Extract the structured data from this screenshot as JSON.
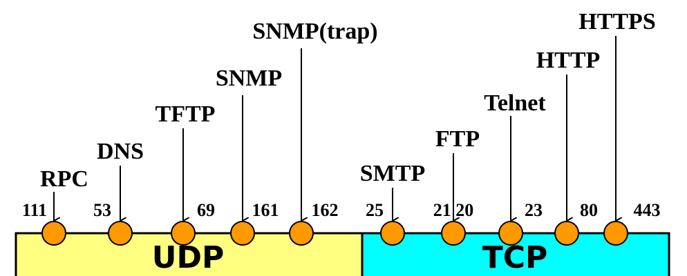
{
  "segments": {
    "udp_label": "UDP",
    "tcp_label": "TCP",
    "udp_color": "#ffff80",
    "tcp_color": "#00ffff"
  },
  "node_color": "#ff9900",
  "services": [
    {
      "id": "rpc",
      "name": "RPC",
      "port": "111"
    },
    {
      "id": "dns",
      "name": "DNS",
      "port": "53"
    },
    {
      "id": "tftp",
      "name": "TFTP",
      "port": "69"
    },
    {
      "id": "snmp",
      "name": "SNMP",
      "port": "161"
    },
    {
      "id": "snmp-trap",
      "name": "SNMP(trap)",
      "port": "162"
    },
    {
      "id": "smtp",
      "name": "SMTP",
      "port": "25"
    },
    {
      "id": "ftp",
      "name": "FTP",
      "port": "21 20"
    },
    {
      "id": "telnet",
      "name": "Telnet",
      "port": "23"
    },
    {
      "id": "http",
      "name": "HTTP",
      "port": "80"
    },
    {
      "id": "https",
      "name": "HTTPS",
      "port": "443"
    }
  ]
}
